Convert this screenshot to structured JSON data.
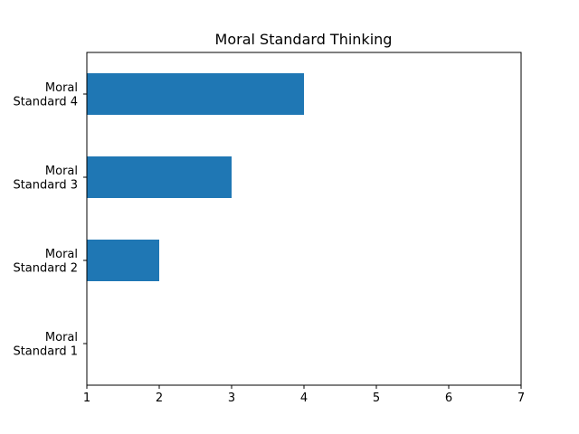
{
  "chart_data": {
    "type": "bar",
    "orientation": "horizontal",
    "title": "Moral Standard Thinking",
    "xlabel": "",
    "ylabel": "",
    "categories": [
      "Moral Standard 1",
      "Moral Standard 2",
      "Moral Standard 3",
      "Moral Standard 4"
    ],
    "category_lines": [
      [
        "Moral",
        "Standard 1"
      ],
      [
        "Moral",
        "Standard 2"
      ],
      [
        "Moral",
        "Standard 3"
      ],
      [
        "Moral",
        "Standard 4"
      ]
    ],
    "values": [
      1,
      2,
      3,
      4
    ],
    "baseline": 1,
    "xlim": [
      1,
      7
    ],
    "xticks": [
      1,
      2,
      3,
      4,
      5,
      6,
      7
    ],
    "grid": false,
    "legend": "none",
    "bar_color": "#1f77b4"
  }
}
